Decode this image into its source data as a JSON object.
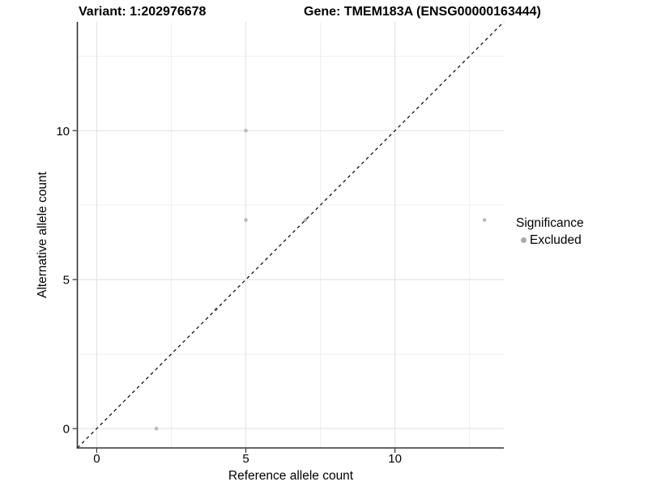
{
  "titles": {
    "left": "Variant: 1:202976678",
    "right": "Gene: TMEM183A (ENSG00000163444)"
  },
  "chart_data": {
    "type": "scatter",
    "title": "",
    "xlabel": "Reference allele count",
    "ylabel": "Alternative allele count",
    "xlim": [
      -0.65,
      13.65
    ],
    "ylim": [
      -0.65,
      13.65
    ],
    "x_ticks": [
      0,
      5,
      10
    ],
    "y_ticks": [
      0,
      5,
      10
    ],
    "minor_breaks": [
      2.5,
      7.5,
      12.5
    ],
    "grid": true,
    "series": [
      {
        "name": "Excluded",
        "points": [
          [
            2,
            0
          ],
          [
            4,
            4
          ],
          [
            5,
            7
          ],
          [
            5,
            10
          ],
          [
            7,
            7
          ],
          [
            13,
            7
          ]
        ],
        "color": "#b9b9b9"
      }
    ],
    "reference_line": {
      "type": "identity",
      "style": "dashed",
      "color": "#000000"
    },
    "legend": {
      "title": "Significance",
      "position": "right",
      "items": [
        {
          "label": "Excluded",
          "color": "#ababab"
        }
      ]
    }
  },
  "colors": {
    "background": "#ffffff",
    "grid_major": "#e2e2e2",
    "grid_minor": "#eeeeee",
    "axis_line": "#333333",
    "tick_mark": "#333333",
    "tick_label": "#000000"
  }
}
